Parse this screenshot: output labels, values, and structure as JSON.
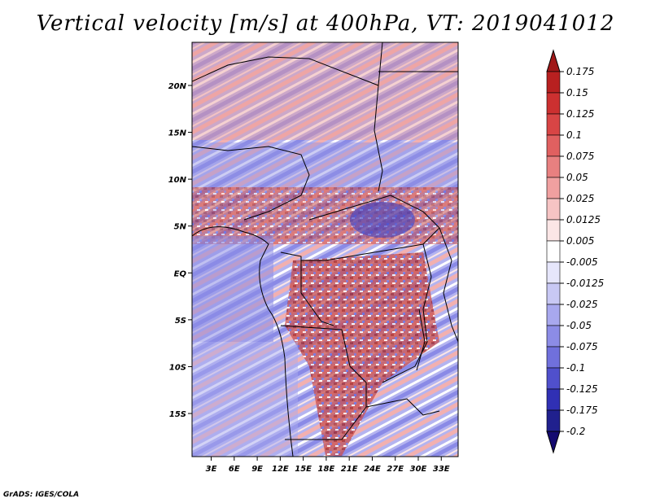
{
  "title": "Vertical velocity [m/s] at 400hPa, VT: 2019041012",
  "credit": "GrADS: IGES/COLA",
  "map": {
    "lon_labels": [
      "3E",
      "6E",
      "9E",
      "12E",
      "15E",
      "18E",
      "21E",
      "24E",
      "27E",
      "30E",
      "33E"
    ],
    "lon_values": [
      3,
      6,
      9,
      12,
      15,
      18,
      21,
      24,
      27,
      30,
      33
    ],
    "lon_range": [
      0.5,
      35.2
    ],
    "lat_labels": [
      "20N",
      "15N",
      "10N",
      "5N",
      "EQ",
      "5S",
      "10S",
      "15S"
    ],
    "lat_values": [
      20,
      15,
      10,
      5,
      0,
      -5,
      -10,
      -15
    ],
    "lat_range": [
      -19.6,
      24.6
    ]
  },
  "colorbar": {
    "labels": [
      "0.175",
      "0.15",
      "0.125",
      "0.1",
      "0.075",
      "0.05",
      "0.025",
      "0.0125",
      "0.005",
      "-0.005",
      "-0.0125",
      "-0.025",
      "-0.05",
      "-0.075",
      "-0.1",
      "-0.125",
      "-0.175",
      "-0.2"
    ],
    "colors": [
      "#a01818",
      "#b82020",
      "#cc3030",
      "#d84545",
      "#e06060",
      "#e88080",
      "#f0a0a0",
      "#f6c4c4",
      "#fbe6e6",
      "#ffffff",
      "#e6e6fb",
      "#c8c8f4",
      "#a8a8ee",
      "#8c8ce6",
      "#7070dc",
      "#5050cc",
      "#3030b4",
      "#20208e",
      "#140a70"
    ]
  }
}
